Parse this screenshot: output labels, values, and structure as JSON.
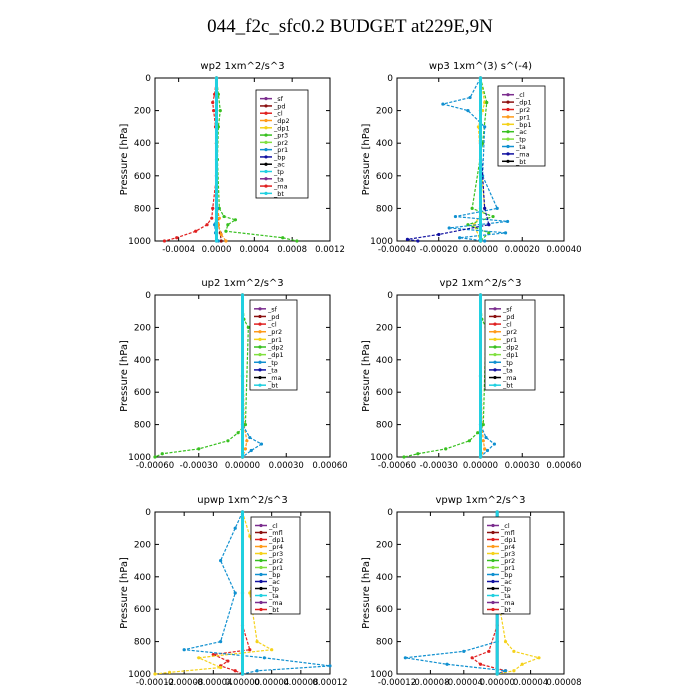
{
  "figure": {
    "title": "044_f2c_sfc0.2  BUDGET at229E,9N"
  },
  "colors": {
    "purple": "#7b2d8e",
    "darkred": "#8b1010",
    "red": "#e02020",
    "orange": "#ff9a1a",
    "yellow": "#f5d21a",
    "green": "#38c020",
    "lime": "#80e040",
    "blue": "#1090d0",
    "navy": "#1010a0",
    "black": "#000000",
    "cyan": "#20d0e0"
  },
  "chart_data": [
    {
      "type": "line",
      "title": "wp2   1xm^2/s^3",
      "ylabel": "Pressure [hPa]",
      "xlim": [
        -0.00065,
        0.0012
      ],
      "ylim": [
        1000,
        0
      ],
      "xticks": [
        "-0.0004",
        "0.0000",
        "0.0004",
        "0.0008",
        "0.0012"
      ],
      "yticks": [
        "0",
        "200",
        "400",
        "600",
        "800",
        "1000"
      ],
      "legend": [
        "_sf",
        "_pd",
        "_cl",
        "_dp2",
        "_dp1",
        "_pr3",
        "_pr2",
        "_pr1",
        "_bp",
        "_ac",
        "_tp",
        "_ta",
        "_ma",
        "_bt"
      ],
      "series": [
        {
          "name": "_sf",
          "color": "#7b2d8e",
          "y": [
            0,
            200,
            400,
            600,
            800,
            900,
            1000
          ],
          "values": [
            0,
            0,
            0,
            0,
            0,
            0,
            0
          ]
        },
        {
          "name": "_pd",
          "color": "#8b1010",
          "y": [
            0,
            400,
            800,
            900,
            950,
            1000
          ],
          "values": [
            0,
            0,
            1e-05,
            2e-05,
            4e-05,
            5e-05
          ]
        },
        {
          "name": "_cl",
          "color": "#e02020",
          "y": [
            0,
            100,
            150,
            200,
            300,
            600,
            800,
            860,
            900,
            940,
            980,
            1000
          ],
          "values": [
            0,
            -2e-05,
            -4e-05,
            -3e-05,
            -1e-05,
            0,
            -4e-05,
            -5e-05,
            -0.0001,
            -0.00022,
            -0.00042,
            -0.00055
          ]
        },
        {
          "name": "_pr2",
          "color": "#ff9a1a",
          "y": [
            0,
            400,
            800,
            860,
            900,
            960,
            1000
          ],
          "values": [
            0,
            0,
            1e-05,
            3e-05,
            2e-05,
            5e-05,
            0.0001
          ]
        },
        {
          "name": "_bp",
          "color": "#38c020",
          "y": [
            0,
            100,
            200,
            300,
            500,
            800,
            850,
            870,
            900,
            940,
            980,
            1000
          ],
          "values": [
            0,
            2e-05,
            4e-05,
            2e-05,
            1e-05,
            3e-05,
            8e-05,
            0.0002,
            0.00012,
            0.0001,
            0.0007,
            0.00085
          ]
        },
        {
          "name": "_tp",
          "color": "#1090d0",
          "y": [
            0,
            800,
            900,
            950,
            1000
          ],
          "values": [
            0,
            1e-05,
            -2e-05,
            -1e-05,
            2e-05
          ]
        },
        {
          "name": "_bt",
          "color": "#20d0e0",
          "y": [
            0,
            500,
            1000
          ],
          "values": [
            0,
            0,
            0
          ]
        }
      ]
    },
    {
      "type": "line",
      "title": "wp3   1xm^(3) s^(-4)",
      "ylabel": "Pressure [hPa]",
      "xlim": [
        -0.0004,
        0.0004
      ],
      "ylim": [
        1000,
        0
      ],
      "xticks": [
        "-0.00040",
        "-0.00020",
        "0.00000",
        "0.00020",
        "0.00040"
      ],
      "yticks": [
        "0",
        "200",
        "400",
        "600",
        "800",
        "1000"
      ],
      "legend": [
        "_cl",
        "_dp1",
        "_pr2",
        "_pr1",
        "_bp1",
        "_ac",
        "_tp",
        "_ta",
        "_ma",
        "_bt"
      ],
      "series": [
        {
          "name": "_cl",
          "color": "#e02020",
          "y": [
            0,
            200,
            400,
            600,
            800,
            1000
          ],
          "values": [
            0,
            0,
            0,
            0,
            0,
            0
          ]
        },
        {
          "name": "_pr1",
          "color": "#f5d21a",
          "y": [
            0,
            150,
            200,
            300,
            500,
            800,
            900,
            1000
          ],
          "values": [
            0,
            2e-05,
            1e-05,
            -1e-05,
            0,
            2e-05,
            -3e-05,
            0
          ]
        },
        {
          "name": "_bp1",
          "color": "#38c020",
          "y": [
            0,
            150,
            400,
            800,
            850,
            900,
            950,
            1000
          ],
          "values": [
            0,
            3e-05,
            1e-05,
            -4e-05,
            6e-05,
            -6e-05,
            4e-05,
            0
          ]
        },
        {
          "name": "_tp",
          "color": "#1090d0",
          "y": [
            0,
            120,
            160,
            200,
            300,
            600,
            800,
            850,
            880,
            920,
            950,
            980,
            1000
          ],
          "values": [
            0,
            -5e-05,
            -0.00018,
            -6e-05,
            2e-05,
            1e-05,
            8e-05,
            -0.00012,
            0.00013,
            -0.00015,
            0.00012,
            -0.0001,
            2e-05
          ]
        },
        {
          "name": "_ta",
          "color": "#1010a0",
          "y": [
            0,
            400,
            800,
            900,
            960,
            990,
            1000
          ],
          "values": [
            0,
            0,
            2e-05,
            4e-05,
            -0.0002,
            -0.00035,
            -0.0003
          ]
        },
        {
          "name": "_bt",
          "color": "#20d0e0",
          "y": [
            0,
            500,
            1000
          ],
          "values": [
            0,
            0,
            0
          ]
        }
      ]
    },
    {
      "type": "line",
      "title": "up2   1xm^2/s^3",
      "ylabel": "Pressure [hPa]",
      "xlim": [
        -0.0006,
        0.0006
      ],
      "ylim": [
        1000,
        0
      ],
      "xticks": [
        "-0.00060",
        "-0.00030",
        "0.00000",
        "0.00030",
        "0.00060"
      ],
      "yticks": [
        "0",
        "200",
        "400",
        "600",
        "800",
        "1000"
      ],
      "legend": [
        "_sf",
        "_pd",
        "_cl",
        "_pr2",
        "_pr1",
        "_dp2",
        "_dp1",
        "_tp",
        "_ta",
        "_ma",
        "_bt"
      ],
      "series": [
        {
          "name": "_sf",
          "color": "#7b2d8e",
          "y": [
            0,
            500,
            1000
          ],
          "values": [
            0,
            0,
            0
          ]
        },
        {
          "name": "_cl",
          "color": "#e02020",
          "y": [
            0,
            500,
            1000
          ],
          "values": [
            0,
            0,
            0
          ]
        },
        {
          "name": "_pr2",
          "color": "#ff9a1a",
          "y": [
            0,
            800,
            900,
            950,
            1000
          ],
          "values": [
            0,
            1e-05,
            3e-05,
            2e-05,
            0
          ]
        },
        {
          "name": "_dp2",
          "color": "#38c020",
          "y": [
            0,
            150,
            200,
            800,
            850,
            900,
            950,
            980,
            1000
          ],
          "values": [
            0,
            1e-05,
            4e-05,
            2e-05,
            -3e-05,
            -0.0001,
            -0.0003,
            -0.00055,
            -0.0006
          ]
        },
        {
          "name": "_tp",
          "color": "#1090d0",
          "y": [
            0,
            800,
            880,
            920,
            960,
            1000
          ],
          "values": [
            0,
            0,
            5e-05,
            0.00013,
            6e-05,
            0
          ]
        },
        {
          "name": "_bt",
          "color": "#20d0e0",
          "y": [
            0,
            500,
            1000
          ],
          "values": [
            0,
            0,
            0
          ]
        }
      ]
    },
    {
      "type": "line",
      "title": "vp2   1xm^2/s^3",
      "ylabel": "Pressure [hPa]",
      "xlim": [
        -0.0006,
        0.0006
      ],
      "ylim": [
        1000,
        0
      ],
      "xticks": [
        "-0.00060",
        "-0.00030",
        "0.00000",
        "0.00030",
        "0.00060"
      ],
      "yticks": [
        "0",
        "200",
        "400",
        "600",
        "800",
        "1000"
      ],
      "legend": [
        "_sf",
        "_pd",
        "_cl",
        "_pr2",
        "_pr1",
        "_dp2",
        "_dp1",
        "_tp",
        "_ta",
        "_ma",
        "_bt"
      ],
      "series": [
        {
          "name": "_sf",
          "color": "#7b2d8e",
          "y": [
            0,
            500,
            1000
          ],
          "values": [
            0,
            0,
            0
          ]
        },
        {
          "name": "_cl",
          "color": "#e02020",
          "y": [
            0,
            500,
            1000
          ],
          "values": [
            0,
            0,
            0
          ]
        },
        {
          "name": "_pr2",
          "color": "#ff9a1a",
          "y": [
            0,
            800,
            900,
            950,
            1000
          ],
          "values": [
            0,
            1e-05,
            2e-05,
            3e-05,
            0
          ]
        },
        {
          "name": "_dp2",
          "color": "#38c020",
          "y": [
            0,
            150,
            200,
            800,
            850,
            900,
            950,
            980,
            1000
          ],
          "values": [
            0,
            1e-05,
            4e-05,
            2e-05,
            -2e-05,
            -8e-05,
            -0.00025,
            -0.00045,
            -0.00055
          ]
        },
        {
          "name": "_tp",
          "color": "#1090d0",
          "y": [
            0,
            800,
            880,
            920,
            960,
            1000
          ],
          "values": [
            0,
            0,
            4e-05,
            0.0001,
            5e-05,
            0
          ]
        },
        {
          "name": "_bt",
          "color": "#20d0e0",
          "y": [
            0,
            500,
            1000
          ],
          "values": [
            0,
            0,
            0
          ]
        }
      ]
    },
    {
      "type": "line",
      "title": "upwp   1xm^2/s^3",
      "ylabel": "Pressure [hPa]",
      "xlim": [
        -0.00012,
        0.00012
      ],
      "ylim": [
        1000,
        0
      ],
      "xticks": [
        "-0.00012",
        "-0.00008",
        "-0.00004",
        "0.00000",
        "0.00004",
        "0.00008",
        "0.00012"
      ],
      "yticks": [
        "0",
        "200",
        "400",
        "600",
        "800",
        "1000"
      ],
      "legend": [
        "_cl",
        "_mfl",
        "_dp1",
        "_pr4",
        "_pr3",
        "_pr2",
        "_pr1",
        "_bp",
        "_ac",
        "_tp",
        "_ta",
        "_ma",
        "_bt"
      ],
      "series": [
        {
          "name": "_mfl",
          "color": "#7b2d8e",
          "y": [
            0,
            500,
            1000
          ],
          "values": [
            0,
            0,
            0
          ]
        },
        {
          "name": "_dp1",
          "color": "#e02020",
          "y": [
            0,
            700,
            850,
            880,
            920,
            950,
            980,
            1000
          ],
          "values": [
            0,
            0,
            1e-05,
            -4e-05,
            -2e-05,
            -3e-05,
            -1e-05,
            0
          ]
        },
        {
          "name": "_pr1",
          "color": "#f5d21a",
          "y": [
            0,
            150,
            300,
            500,
            800,
            850,
            900,
            960,
            990,
            1000
          ],
          "values": [
            0,
            1e-05,
            2e-05,
            1e-05,
            2e-05,
            4e-05,
            -6e-05,
            -3e-05,
            -0.0001,
            -0.00012
          ]
        },
        {
          "name": "_tp",
          "color": "#1090d0",
          "y": [
            0,
            100,
            300,
            500,
            800,
            850,
            900,
            950,
            980,
            1000
          ],
          "values": [
            0,
            -1e-05,
            -3e-05,
            -1e-05,
            -3e-05,
            -8e-05,
            3e-05,
            0.00012,
            2e-05,
            0
          ]
        },
        {
          "name": "_bt",
          "color": "#20d0e0",
          "y": [
            0,
            500,
            1000
          ],
          "values": [
            0,
            0,
            0
          ]
        }
      ]
    },
    {
      "type": "line",
      "title": "vpwp   1xm^2/s^3",
      "ylabel": "Pressure [hPa]",
      "xlim": [
        -0.00012,
        8e-05
      ],
      "ylim": [
        1000,
        0
      ],
      "xticks": [
        "-0.00012",
        "-0.00008",
        "-0.00004",
        "0.00000",
        "0.00004",
        "0.00008"
      ],
      "yticks": [
        "0",
        "200",
        "400",
        "600",
        "800",
        "1000"
      ],
      "legend": [
        "_cl",
        "_mfl",
        "_dp1",
        "_pr4",
        "_pr3",
        "_pr2",
        "_pr1",
        "_bp",
        "_ac",
        "_tp",
        "_ta",
        "_ma",
        "_bt"
      ],
      "series": [
        {
          "name": "_mfl",
          "color": "#7b2d8e",
          "y": [
            0,
            500,
            1000
          ],
          "values": [
            0,
            0,
            0
          ]
        },
        {
          "name": "_dp1",
          "color": "#e02020",
          "y": [
            0,
            700,
            860,
            900,
            940,
            980,
            1000
          ],
          "values": [
            0,
            0,
            -1e-05,
            -3e-05,
            -2e-05,
            1e-05,
            0
          ]
        },
        {
          "name": "_pr1",
          "color": "#f5d21a",
          "y": [
            0,
            150,
            300,
            500,
            800,
            860,
            900,
            940,
            980,
            1000
          ],
          "values": [
            0,
            1e-05,
            1e-05,
            0,
            1e-05,
            2e-05,
            5e-05,
            3e-05,
            2e-05,
            0
          ]
        },
        {
          "name": "_tp",
          "color": "#1090d0",
          "y": [
            0,
            800,
            860,
            900,
            940,
            980,
            1000
          ],
          "values": [
            0,
            0,
            -4e-05,
            -0.00011,
            -6e-05,
            1e-05,
            0
          ]
        },
        {
          "name": "_bt",
          "color": "#20d0e0",
          "y": [
            0,
            500,
            1000
          ],
          "values": [
            0,
            0,
            0
          ]
        }
      ]
    }
  ]
}
